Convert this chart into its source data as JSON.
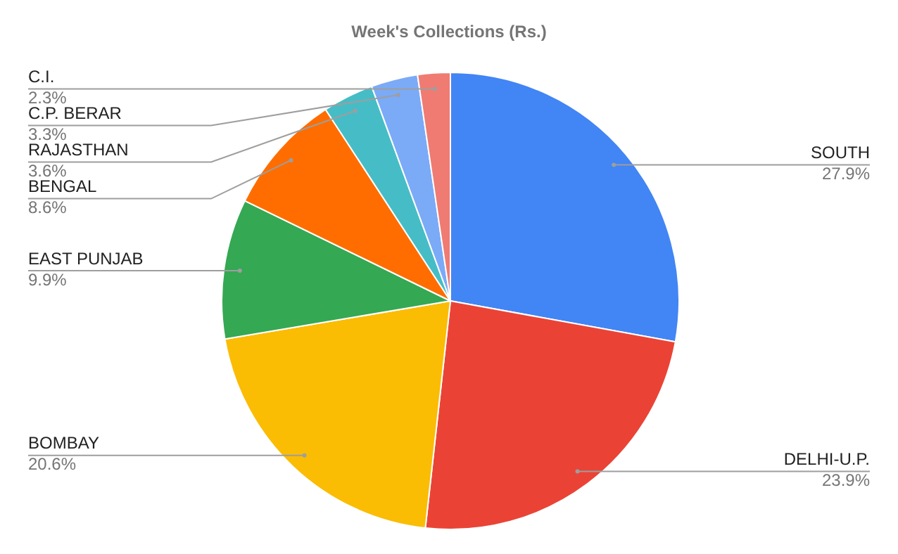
{
  "chart_data": {
    "type": "pie",
    "title": "Week's Collections (Rs.)",
    "categories": [
      "SOUTH",
      "DELHI-U.P.",
      "BOMBAY",
      "EAST PUNJAB",
      "BENGAL",
      "RAJASTHAN",
      "C.P. BERAR",
      "C.I."
    ],
    "values": [
      27.9,
      23.9,
      20.6,
      9.9,
      8.6,
      3.6,
      3.3,
      2.3
    ],
    "value_labels": [
      "27.9%",
      "23.9%",
      "20.6%",
      "9.9%",
      "8.6%",
      "3.6%",
      "3.3%",
      "2.3%"
    ],
    "colors": [
      "#4285f4",
      "#ea4335",
      "#fbbc04",
      "#34a853",
      "#ff6d01",
      "#46bdc6",
      "#7baaf7",
      "#f07b72"
    ],
    "legend": false
  }
}
